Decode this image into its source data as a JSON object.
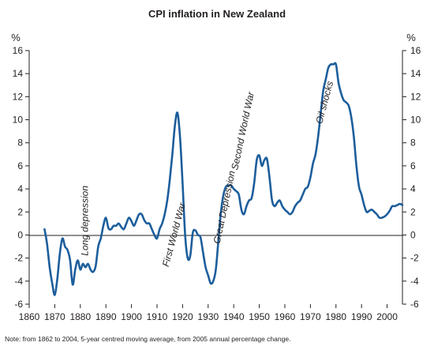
{
  "chart_data": {
    "type": "line",
    "title": "CPI inflation in New Zealand",
    "unit_left": "%",
    "unit_right": "%",
    "xlim": [
      1860,
      2006
    ],
    "ylim": [
      -6,
      16
    ],
    "x_ticks": [
      1860,
      1870,
      1880,
      1890,
      1900,
      1910,
      1920,
      1930,
      1940,
      1950,
      1960,
      1970,
      1980,
      1990,
      2000
    ],
    "y_ticks": [
      -6,
      -4,
      -2,
      0,
      2,
      4,
      6,
      8,
      10,
      12,
      14,
      16
    ],
    "grid": false,
    "series_color": "#1c5e9c",
    "series": [
      {
        "x": [
          1866,
          1867,
          1868,
          1869,
          1870,
          1871,
          1872,
          1873,
          1874,
          1875,
          1876,
          1877,
          1878,
          1879,
          1880,
          1881,
          1882,
          1883,
          1884,
          1885,
          1886,
          1887,
          1888,
          1889,
          1890,
          1891,
          1892,
          1893,
          1894,
          1895,
          1896,
          1897,
          1898,
          1899,
          1900,
          1901,
          1902,
          1903,
          1904,
          1905,
          1906,
          1907,
          1908,
          1909,
          1910,
          1911,
          1912,
          1913,
          1914,
          1915,
          1916,
          1917,
          1918,
          1919,
          1920,
          1921,
          1922,
          1923,
          1924,
          1925,
          1926,
          1927,
          1928,
          1929,
          1930,
          1931,
          1932,
          1933,
          1934,
          1935,
          1936,
          1937,
          1938,
          1939,
          1940,
          1941,
          1942,
          1943,
          1944,
          1945,
          1946,
          1947,
          1948,
          1949,
          1950,
          1951,
          1952,
          1953,
          1954,
          1955,
          1956,
          1957,
          1958,
          1959,
          1960,
          1961,
          1962,
          1963,
          1964,
          1965,
          1966,
          1967,
          1968,
          1969,
          1970,
          1971,
          1972,
          1973,
          1974,
          1975,
          1976,
          1977,
          1978,
          1979,
          1980,
          1981,
          1982,
          1983,
          1984,
          1985,
          1986,
          1987,
          1988,
          1989,
          1990,
          1991,
          1992,
          1993,
          1994,
          1995,
          1996,
          1997,
          1998,
          1999,
          2000,
          2001,
          2002,
          2003,
          2004,
          2005,
          2006
        ],
        "values": [
          0.5,
          -0.8,
          -2.8,
          -4.2,
          -5.2,
          -3.8,
          -1.6,
          -0.3,
          -1.0,
          -1.3,
          -2.2,
          -4.3,
          -3.0,
          -2.2,
          -3.0,
          -2.5,
          -2.8,
          -2.5,
          -3.0,
          -3.2,
          -2.7,
          -1.0,
          -0.3,
          0.8,
          1.5,
          0.6,
          0.5,
          0.8,
          0.8,
          1.0,
          0.7,
          0.5,
          1.0,
          1.5,
          1.2,
          0.8,
          1.3,
          1.8,
          1.8,
          1.3,
          1.0,
          1.0,
          0.5,
          0.0,
          -0.3,
          0.5,
          1.0,
          1.8,
          3.0,
          4.8,
          7.0,
          9.5,
          10.6,
          8.5,
          4.5,
          0.0,
          -2.0,
          -1.8,
          0.2,
          0.4,
          0.0,
          -0.2,
          -1.5,
          -2.8,
          -3.5,
          -4.2,
          -4.0,
          -3.0,
          -0.5,
          2.0,
          3.5,
          4.2,
          4.3,
          4.3,
          4.0,
          3.8,
          3.5,
          2.2,
          1.8,
          2.5,
          3.0,
          3.2,
          4.5,
          6.5,
          6.9,
          6.0,
          6.5,
          6.6,
          5.0,
          3.0,
          2.5,
          2.8,
          3.0,
          2.5,
          2.2,
          2.0,
          1.8,
          2.0,
          2.5,
          2.8,
          3.0,
          3.5,
          4.0,
          4.2,
          5.0,
          6.2,
          7.0,
          8.5,
          10.5,
          12.5,
          13.5,
          14.5,
          14.8,
          14.8,
          14.8,
          13.2,
          12.3,
          11.7,
          11.5,
          11.2,
          10.2,
          8.5,
          6.0,
          4.2,
          3.5,
          2.6,
          2.0,
          2.1,
          2.2,
          2.0,
          1.8,
          1.5,
          1.5,
          1.6,
          1.8,
          2.1,
          2.5,
          2.5,
          2.6,
          2.7,
          2.6
        ]
      }
    ],
    "annotations": [
      {
        "text": "Long depression",
        "x": 1883,
        "y": -1.8,
        "rotate": -90
      },
      {
        "text": "First World War",
        "x": 1914.5,
        "y": -2.8,
        "rotate": -75
      },
      {
        "text": "Great Depression",
        "x": 1934.5,
        "y": -0.8,
        "rotate": -78
      },
      {
        "text": "Second World War",
        "x": 1941.5,
        "y": 5.6,
        "rotate": -78
      },
      {
        "text": "Oil shocks",
        "x": 1974.5,
        "y": 9.6,
        "rotate": -75
      }
    ],
    "note": "Note: from 1862 to 2004, 5-year centred moving average, from 2005 annual percentage change."
  }
}
